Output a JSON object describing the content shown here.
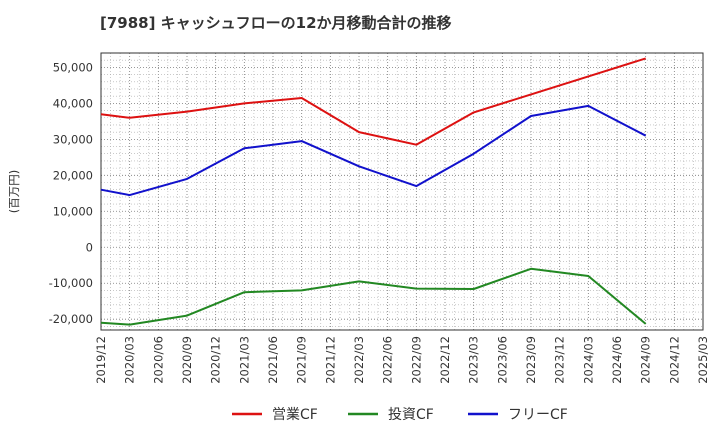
{
  "chart_data": {
    "type": "line",
    "title": "[7988]  キャッシュフローの12か月移動合計の推移",
    "ylabel": "(百万円)",
    "xlabel": "",
    "ylim": [
      -23000,
      54000
    ],
    "y_ticks": [
      -20000,
      -10000,
      0,
      10000,
      20000,
      30000,
      40000,
      50000
    ],
    "y_tick_labels": [
      "-20,000",
      "-10,000",
      "0",
      "10,000",
      "20,000",
      "30,000",
      "40,000",
      "50,000"
    ],
    "x_tick_labels": [
      "2019/12",
      "2020/03",
      "2020/06",
      "2020/09",
      "2020/12",
      "2021/03",
      "2021/06",
      "2021/09",
      "2021/12",
      "2022/03",
      "2022/06",
      "2022/09",
      "2022/12",
      "2023/03",
      "2023/06",
      "2023/09",
      "2023/12",
      "2024/03",
      "2024/06",
      "2024/09",
      "2024/12",
      "2025/03"
    ],
    "grid": true,
    "legend_position": "bottom",
    "series": [
      {
        "name": "営業CF",
        "color": "#dd1111",
        "x": [
          "2019/12",
          "2020/03",
          "2020/09",
          "2021/03",
          "2021/09",
          "2022/03",
          "2022/09",
          "2023/03",
          "2023/09",
          "2024/03",
          "2024/09"
        ],
        "values": [
          37000,
          36000,
          37700,
          40000,
          41500,
          32000,
          28500,
          37500,
          42500,
          47500,
          52500
        ]
      },
      {
        "name": "投資CF",
        "color": "#228822",
        "x": [
          "2019/12",
          "2020/03",
          "2020/09",
          "2021/03",
          "2021/09",
          "2022/03",
          "2022/09",
          "2023/03",
          "2023/09",
          "2024/03",
          "2024/09"
        ],
        "values": [
          -21000,
          -21500,
          -19000,
          -12500,
          -12000,
          -9500,
          -11500,
          -11600,
          -6000,
          -8000,
          -21300
        ]
      },
      {
        "name": "フリーCF",
        "color": "#1111cc",
        "x": [
          "2019/12",
          "2020/03",
          "2020/09",
          "2021/03",
          "2021/09",
          "2022/03",
          "2022/09",
          "2023/03",
          "2023/09",
          "2024/03",
          "2024/09"
        ],
        "values": [
          16000,
          14500,
          19000,
          27500,
          29500,
          22500,
          17000,
          26000,
          36500,
          39300,
          31000
        ]
      }
    ]
  }
}
